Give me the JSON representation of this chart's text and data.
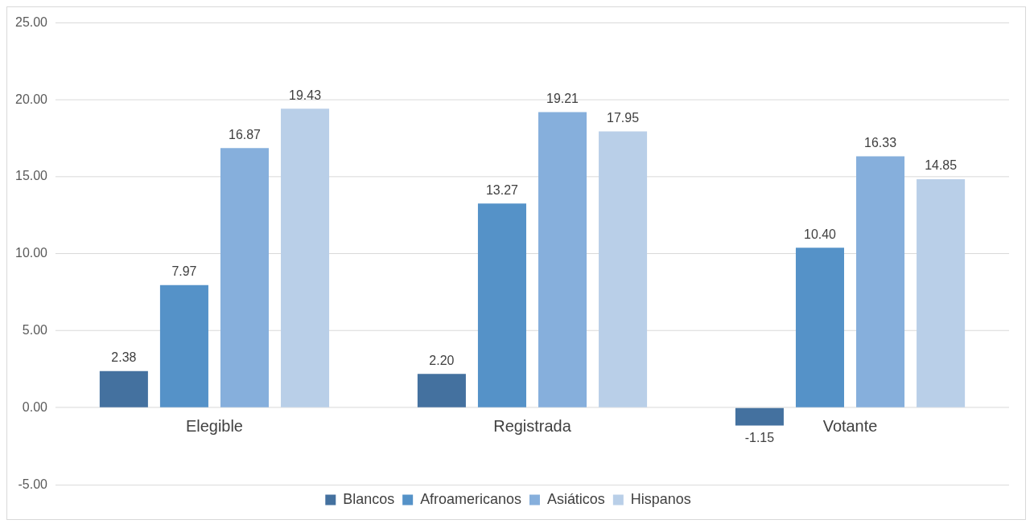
{
  "chart_data": {
    "type": "bar",
    "categories": [
      "Elegible",
      "Registrada",
      "Votante"
    ],
    "series": [
      {
        "name": "Blancos",
        "color": "#44719f",
        "values": [
          2.38,
          2.2,
          -1.15
        ],
        "value_labels": [
          "2.38",
          "2.20",
          "-1.15"
        ]
      },
      {
        "name": "Afroamericanos",
        "color": "#5592c8",
        "values": [
          7.97,
          13.27,
          10.4
        ],
        "value_labels": [
          "7.97",
          "13.27",
          "10.40"
        ]
      },
      {
        "name": "Asiáticos",
        "color": "#86afdc",
        "values": [
          16.87,
          19.21,
          16.33
        ],
        "value_labels": [
          "16.87",
          "19.21",
          "16.33"
        ]
      },
      {
        "name": "Hispanos",
        "color": "#b9cfe8",
        "values": [
          19.43,
          17.95,
          14.85
        ],
        "value_labels": [
          "19.43",
          "17.95",
          "14.85"
        ]
      }
    ],
    "ylim": [
      -5,
      25
    ],
    "yticks": [
      {
        "value": -5,
        "label": "-5.00"
      },
      {
        "value": 0,
        "label": "0.00"
      },
      {
        "value": 5,
        "label": "5.00"
      },
      {
        "value": 10,
        "label": "10.00"
      },
      {
        "value": 15,
        "label": "15.00"
      },
      {
        "value": 20,
        "label": "20.00"
      },
      {
        "value": 25,
        "label": "25.00"
      }
    ],
    "grid": "y",
    "legend": "bottom"
  }
}
